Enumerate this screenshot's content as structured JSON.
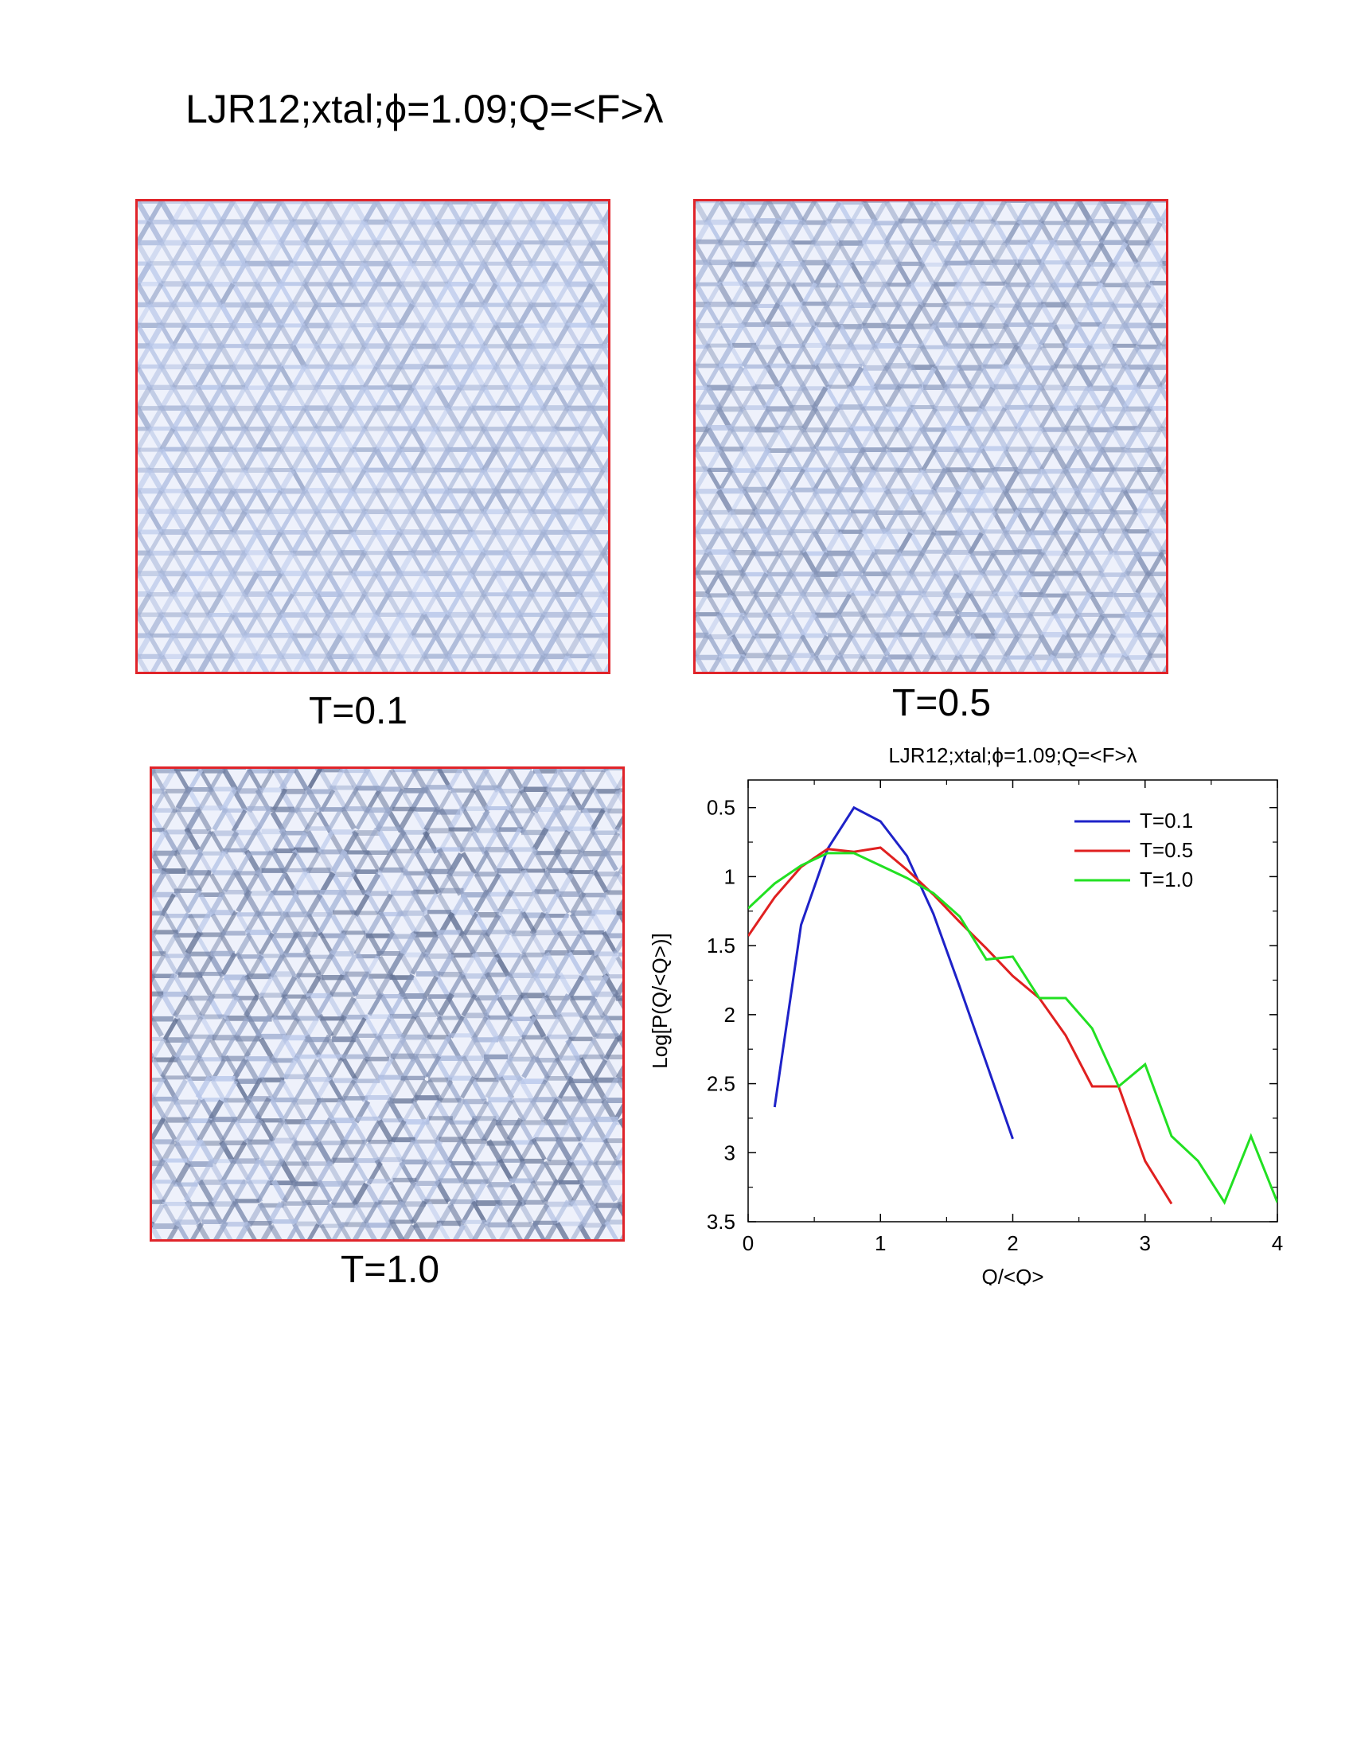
{
  "page": {
    "title": "LJR12;xtal;ϕ=1.09;Q=<F>λ"
  },
  "panels": [
    {
      "label": "T=0.1",
      "temperature": 0.1,
      "border_color": "#e0242a"
    },
    {
      "label": "T=0.5",
      "temperature": 0.5,
      "border_color": "#e0242a"
    },
    {
      "label": "T=1.0",
      "temperature": 1.0,
      "border_color": "#e0242a"
    }
  ],
  "chart_data": {
    "type": "line",
    "title": "LJR12;xtal;ϕ=1.09;Q=<F>λ",
    "xlabel": "Q/<Q>",
    "ylabel": "Log[P(Q/<Q>)]",
    "xlim": [
      0,
      4
    ],
    "ylim": [
      3.5,
      0.3
    ],
    "y_inverted": true,
    "x_ticks": [
      "0",
      "1",
      "2",
      "3",
      "4"
    ],
    "y_ticks": [
      "0.5",
      "1",
      "1.5",
      "2",
      "2.5",
      "3",
      "3.5"
    ],
    "legend_position": "top-right",
    "grid": false,
    "series": [
      {
        "name": "T=0.1",
        "color": "#1e22c8",
        "x": [
          0.2,
          0.4,
          0.6,
          0.8,
          1.0,
          1.2,
          1.4,
          1.6,
          1.8,
          2.0
        ],
        "y": [
          2.67,
          1.35,
          0.8,
          0.5,
          0.6,
          0.85,
          1.27,
          1.8,
          2.35,
          2.9
        ]
      },
      {
        "name": "T=0.5",
        "color": "#e02020",
        "x": [
          0.0,
          0.2,
          0.4,
          0.6,
          0.8,
          1.0,
          1.2,
          1.4,
          1.6,
          1.8,
          2.0,
          2.2,
          2.4,
          2.6,
          2.8,
          3.0,
          3.2
        ],
        "y": [
          1.43,
          1.15,
          0.93,
          0.8,
          0.82,
          0.79,
          0.95,
          1.13,
          1.33,
          1.52,
          1.72,
          1.88,
          2.15,
          2.52,
          2.52,
          3.06,
          3.37
        ]
      },
      {
        "name": "T=1.0",
        "color": "#22e022",
        "x": [
          0.0,
          0.2,
          0.4,
          0.6,
          0.8,
          1.0,
          1.2,
          1.4,
          1.6,
          1.8,
          2.0,
          2.2,
          2.4,
          2.6,
          2.8,
          3.0,
          3.2,
          3.4,
          3.6,
          3.8,
          4.0
        ],
        "y": [
          1.23,
          1.05,
          0.92,
          0.83,
          0.83,
          0.92,
          1.01,
          1.12,
          1.29,
          1.6,
          1.58,
          1.88,
          1.88,
          2.1,
          2.52,
          2.36,
          2.88,
          3.06,
          3.36,
          2.88,
          3.36
        ]
      }
    ]
  }
}
